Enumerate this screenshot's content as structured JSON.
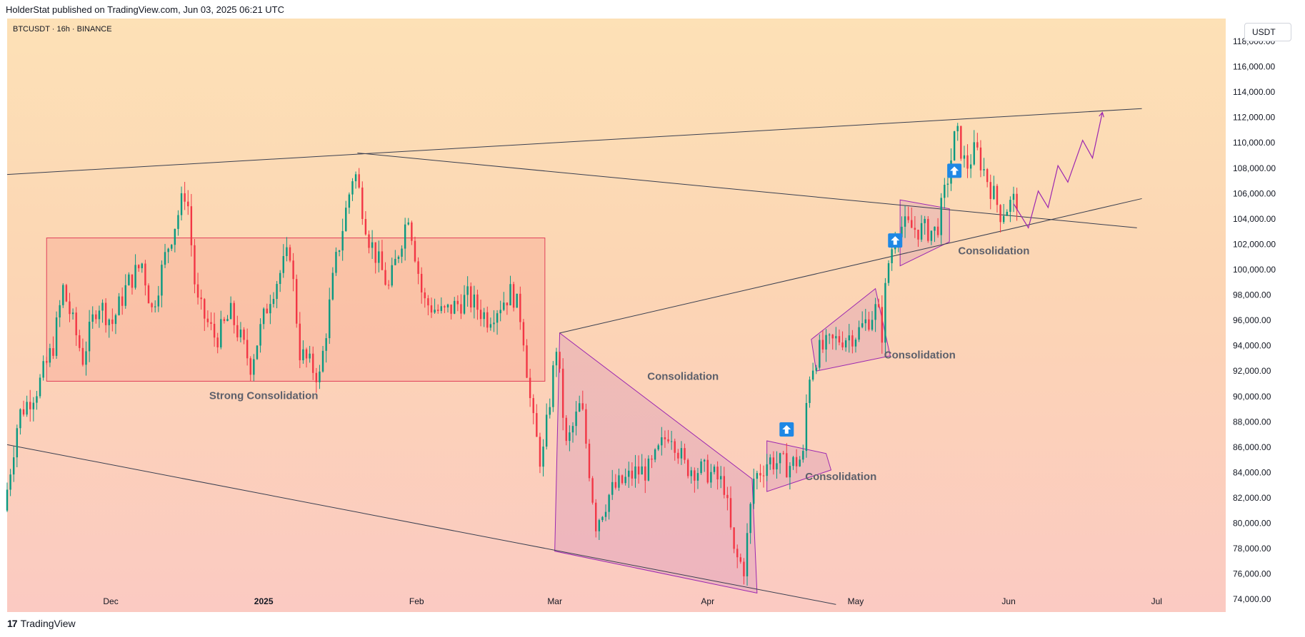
{
  "header": {
    "publisher": "HolderStat published on TradingView.com, Jun 03, 2025 06:21 UTC"
  },
  "footer": {
    "brand": "TradingView",
    "logo_glyph": "17"
  },
  "symbol_label": "BTCUSDT · 16h · BINANCE",
  "currency_button": "USDT",
  "colors": {
    "up": "#089981",
    "down": "#f23645",
    "pattern": "#9c27b0",
    "box": "#e0405a",
    "trendline": "#3a3f50",
    "label": "#5d606b"
  },
  "chart_data": {
    "type": "candlestick",
    "ylim": [
      73000,
      119800
    ],
    "y_ticks": [
      {
        "value": 74000,
        "label": "74,000.00"
      },
      {
        "value": 76000,
        "label": "76,000.00"
      },
      {
        "value": 78000,
        "label": "78,000.00"
      },
      {
        "value": 80000,
        "label": "80,000.00"
      },
      {
        "value": 82000,
        "label": "82,000.00"
      },
      {
        "value": 84000,
        "label": "84,000.00"
      },
      {
        "value": 86000,
        "label": "86,000.00"
      },
      {
        "value": 88000,
        "label": "88,000.00"
      },
      {
        "value": 90000,
        "label": "90,000.00"
      },
      {
        "value": 92000,
        "label": "92,000.00"
      },
      {
        "value": 94000,
        "label": "94,000.00"
      },
      {
        "value": 96000,
        "label": "96,000.00"
      },
      {
        "value": 98000,
        "label": "98,000.00"
      },
      {
        "value": 100000,
        "label": "100,000.00"
      },
      {
        "value": 102000,
        "label": "102,000.00"
      },
      {
        "value": 104000,
        "label": "104,000.00"
      },
      {
        "value": 106000,
        "label": "106,000.00"
      },
      {
        "value": 108000,
        "label": "108,000.00"
      },
      {
        "value": 110000,
        "label": "110,000.00"
      },
      {
        "value": 112000,
        "label": "112,000.00"
      },
      {
        "value": 114000,
        "label": "114,000.00"
      },
      {
        "value": 116000,
        "label": "116,000.00"
      },
      {
        "value": 118000,
        "label": "118,000.00"
      }
    ],
    "x_ticks": [
      {
        "date": "2024-12-01",
        "label": "Dec",
        "bold": false
      },
      {
        "date": "2025-01-01",
        "label": "2025",
        "bold": true
      },
      {
        "date": "2025-02-01",
        "label": "Feb",
        "bold": false
      },
      {
        "date": "2025-03-01",
        "label": "Mar",
        "bold": false
      },
      {
        "date": "2025-04-01",
        "label": "Apr",
        "bold": false
      },
      {
        "date": "2025-05-01",
        "label": "May",
        "bold": false
      },
      {
        "date": "2025-06-01",
        "label": "Jun",
        "bold": false
      },
      {
        "date": "2025-07-01",
        "label": "Jul",
        "bold": false
      }
    ],
    "x_range": [
      "2024-11-10",
      "2025-07-15"
    ],
    "price_path": [
      [
        "2024-11-10",
        81000
      ],
      [
        "2024-11-13",
        88500
      ],
      [
        "2024-11-17",
        90800
      ],
      [
        "2024-11-20",
        94000
      ],
      [
        "2024-11-22",
        98500
      ],
      [
        "2024-11-26",
        93000
      ],
      [
        "2024-11-29",
        97500
      ],
      [
        "2024-12-02",
        95800
      ],
      [
        "2024-12-05",
        98800
      ],
      [
        "2024-12-08",
        100500
      ],
      [
        "2024-12-10",
        96800
      ],
      [
        "2024-12-13",
        101500
      ],
      [
        "2024-12-17",
        106500
      ],
      [
        "2024-12-19",
        97500
      ],
      [
        "2024-12-23",
        94500
      ],
      [
        "2024-12-26",
        96500
      ],
      [
        "2024-12-30",
        92500
      ],
      [
        "2025-01-03",
        98000
      ],
      [
        "2025-01-07",
        101500
      ],
      [
        "2025-01-09",
        93500
      ],
      [
        "2025-01-13",
        91500
      ],
      [
        "2025-01-16",
        100000
      ],
      [
        "2025-01-20",
        108000
      ],
      [
        "2025-01-23",
        102500
      ],
      [
        "2025-01-27",
        98500
      ],
      [
        "2025-01-31",
        104500
      ],
      [
        "2025-02-03",
        97500
      ],
      [
        "2025-02-07",
        96500
      ],
      [
        "2025-02-12",
        97800
      ],
      [
        "2025-02-16",
        96200
      ],
      [
        "2025-02-21",
        98300
      ],
      [
        "2025-02-23",
        96000
      ],
      [
        "2025-02-25",
        88500
      ],
      [
        "2025-02-27",
        84500
      ],
      [
        "2025-03-02",
        94000
      ],
      [
        "2025-03-04",
        86000
      ],
      [
        "2025-03-07",
        89500
      ],
      [
        "2025-03-10",
        80000
      ],
      [
        "2025-03-13",
        82500
      ],
      [
        "2025-03-18",
        84000
      ],
      [
        "2025-03-21",
        84200
      ],
      [
        "2025-03-25",
        87500
      ],
      [
        "2025-03-28",
        84500
      ],
      [
        "2025-04-02",
        84000
      ],
      [
        "2025-04-05",
        83000
      ],
      [
        "2025-04-07",
        77500
      ],
      [
        "2025-04-09",
        76500
      ],
      [
        "2025-04-11",
        83500
      ],
      [
        "2025-04-14",
        85000
      ],
      [
        "2025-04-18",
        84500
      ],
      [
        "2025-04-21",
        85200
      ],
      [
        "2025-04-22",
        91500
      ],
      [
        "2025-04-24",
        93500
      ],
      [
        "2025-04-28",
        94500
      ],
      [
        "2025-05-02",
        95000
      ],
      [
        "2025-05-06",
        97000
      ],
      [
        "2025-05-07",
        95000
      ],
      [
        "2025-05-08",
        100000
      ],
      [
        "2025-05-10",
        103500
      ],
      [
        "2025-05-14",
        103200
      ],
      [
        "2025-05-18",
        103000
      ],
      [
        "2025-05-20",
        106500
      ],
      [
        "2025-05-22",
        111000
      ],
      [
        "2025-05-24",
        108000
      ],
      [
        "2025-05-26",
        109500
      ],
      [
        "2025-05-28",
        107500
      ],
      [
        "2025-05-31",
        104500
      ],
      [
        "2025-06-03",
        105500
      ]
    ],
    "candle_seed": 7,
    "trendlines": [
      {
        "name": "upper-resistance-line",
        "p1": [
          "2024-11-10",
          107500
        ],
        "p2": [
          "2025-06-28",
          112700
        ]
      },
      {
        "name": "descending-trendline",
        "p1": [
          "2025-01-20",
          109200
        ],
        "p2": [
          "2025-06-27",
          103300
        ]
      },
      {
        "name": "rising-support-line",
        "p1": [
          "2025-03-02",
          95000
        ],
        "p2": [
          "2025-06-28",
          105600
        ]
      },
      {
        "name": "lower-channel-line",
        "p1": [
          "2024-11-10",
          86200
        ],
        "p2": [
          "2025-04-27",
          73600
        ]
      }
    ],
    "consolidation_box": {
      "x1": "2024-11-18",
      "x2": "2025-02-27",
      "y1": 91200,
      "y2": 102500
    },
    "triangles": [
      {
        "name": "falling-wedge",
        "points": [
          [
            "2025-03-02",
            95000
          ],
          [
            "2025-03-01",
            77800
          ],
          [
            "2025-04-11",
            74500
          ],
          [
            "2025-04-10",
            83500
          ]
        ]
      },
      {
        "name": "pennant-april",
        "points": [
          [
            "2025-04-13",
            86500
          ],
          [
            "2025-04-25",
            85500
          ],
          [
            "2025-04-26",
            84200
          ],
          [
            "2025-04-13",
            82500
          ]
        ]
      },
      {
        "name": "flag-may",
        "points": [
          [
            "2025-04-22",
            94500
          ],
          [
            "2025-05-05",
            98500
          ],
          [
            "2025-05-08",
            93200
          ],
          [
            "2025-04-23",
            92000
          ]
        ]
      },
      {
        "name": "pennant-mid-may",
        "points": [
          [
            "2025-05-10",
            105500
          ],
          [
            "2025-05-20",
            104800
          ],
          [
            "2025-05-20",
            102200
          ],
          [
            "2025-05-10",
            100300
          ]
        ]
      }
    ],
    "projection": [
      [
        "2025-06-02",
        105200
      ],
      [
        "2025-06-05",
        103300
      ],
      [
        "2025-06-07",
        106200
      ],
      [
        "2025-06-09",
        104900
      ],
      [
        "2025-06-11",
        108200
      ],
      [
        "2025-06-13",
        106900
      ],
      [
        "2025-06-16",
        110200
      ],
      [
        "2025-06-18",
        108800
      ],
      [
        "2025-06-20",
        112400
      ]
    ],
    "annotations": [
      {
        "text": "Strong Consolidation",
        "date": "2025-01-01",
        "price": 89800
      },
      {
        "text": "Consolidation",
        "date": "2025-03-27",
        "price": 91300
      },
      {
        "text": "Consolidation",
        "date": "2025-04-28",
        "price": 83400
      },
      {
        "text": "Consolidation",
        "date": "2025-05-14",
        "price": 93000
      },
      {
        "text": "Consolidation",
        "date": "2025-05-29",
        "price": 101200
      }
    ],
    "arrows": [
      {
        "date": "2025-04-17",
        "price": 87400
      },
      {
        "date": "2025-05-09",
        "price": 102300
      },
      {
        "date": "2025-05-21",
        "price": 107800
      }
    ]
  }
}
